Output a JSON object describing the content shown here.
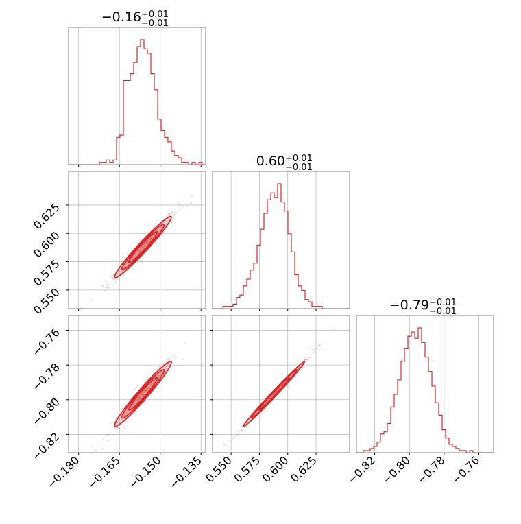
{
  "chart_data": {
    "type": "corner",
    "color": "#d62728",
    "grid": true,
    "params": [
      {
        "title_value": "−0.16",
        "title_plus": "+0.01",
        "title_minus": "−0.01",
        "range": [
          -0.1837,
          -0.1333
        ],
        "ticks": [
          -0.18,
          -0.165,
          -0.15,
          -0.135
        ],
        "tick_labels": [
          "−0.180",
          "−0.165",
          "−0.150",
          "−0.135"
        ]
      },
      {
        "title_value": "0.60",
        "title_plus": "+0.01",
        "title_minus": "−0.01",
        "range": [
          0.5336,
          0.6546
        ],
        "ticks": [
          0.55,
          0.575,
          0.6,
          0.625
        ],
        "tick_labels": [
          "0.550",
          "0.575",
          "0.600",
          "0.625"
        ]
      },
      {
        "title_value": "−0.79",
        "title_plus": "+0.01",
        "title_minus": "−0.01",
        "range": [
          -0.8305,
          -0.7515
        ],
        "ticks": [
          -0.82,
          -0.8,
          -0.78,
          -0.76
        ],
        "tick_labels": [
          "−0.82",
          "−0.80",
          "−0.78",
          "−0.76"
        ]
      }
    ],
    "histograms": [
      {
        "bin_start": -0.1837,
        "bin_width": 0.00126,
        "counts": [
          0,
          0,
          0,
          0,
          0,
          0,
          0,
          0,
          0,
          1,
          1,
          2,
          1,
          2,
          12,
          13,
          37,
          37,
          40,
          45,
          52,
          55,
          51,
          49,
          40,
          33,
          20,
          15,
          12,
          10,
          6,
          4,
          3,
          1,
          1,
          0,
          1,
          0,
          1,
          0
        ]
      },
      {
        "bin_start": 0.5336,
        "bin_width": 0.003025,
        "counts": [
          0,
          0,
          0,
          1,
          1,
          1,
          2,
          5,
          6,
          10,
          13,
          17,
          20,
          28,
          35,
          42,
          48,
          51,
          49,
          55,
          47,
          43,
          33,
          25,
          15,
          10,
          8,
          4,
          3,
          1,
          1,
          1,
          0,
          0,
          0,
          0,
          0,
          0,
          0,
          0
        ]
      },
      {
        "bin_start": -0.8305,
        "bin_width": 0.001975,
        "counts": [
          0,
          0,
          1,
          1,
          2,
          3,
          5,
          9,
          10,
          14,
          22,
          28,
          35,
          44,
          50,
          56,
          58,
          55,
          60,
          53,
          46,
          39,
          32,
          24,
          18,
          11,
          7,
          4,
          3,
          2,
          1,
          1,
          0,
          1,
          0,
          0,
          0,
          0,
          0,
          0
        ]
      }
    ],
    "pairs": [
      {
        "row": 1,
        "col": 0,
        "rho": 0.982
      },
      {
        "row": 2,
        "col": 0,
        "rho": 0.98
      },
      {
        "row": 2,
        "col": 1,
        "rho": 0.997
      }
    ]
  }
}
